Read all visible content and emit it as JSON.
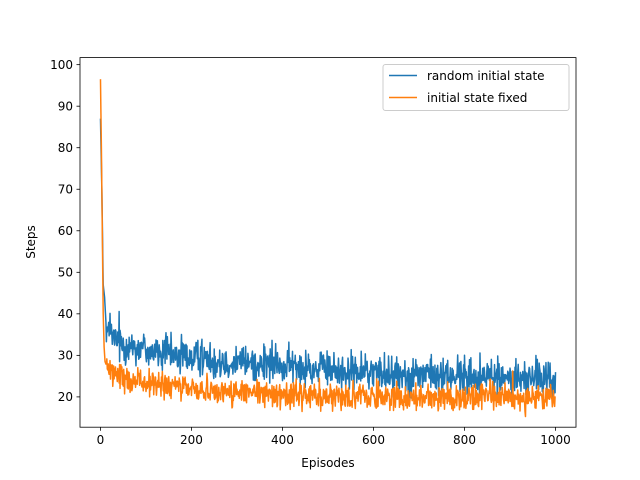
{
  "chart_data": {
    "type": "line",
    "title": "",
    "xlabel": "Episodes",
    "ylabel": "Steps",
    "xlim": [
      -45,
      1045
    ],
    "ylim": [
      12.7,
      101.7
    ],
    "x_ticks": [
      0,
      200,
      400,
      600,
      800,
      1000
    ],
    "y_ticks": [
      20,
      30,
      40,
      50,
      60,
      70,
      80,
      90,
      100
    ],
    "grid": false,
    "legend_position": "top-right",
    "series": [
      {
        "name": "random initial state",
        "color": "#1f77b4",
        "points": [
          [
            0,
            87
          ],
          [
            3,
            70
          ],
          [
            6,
            47
          ],
          [
            9,
            44
          ],
          [
            12,
            38
          ],
          [
            15,
            36
          ],
          [
            20,
            35
          ],
          [
            30,
            34
          ],
          [
            40,
            33
          ],
          [
            60,
            32.5
          ],
          [
            80,
            32
          ],
          [
            100,
            31.5
          ],
          [
            130,
            30.5
          ],
          [
            160,
            30
          ],
          [
            200,
            29.5
          ],
          [
            250,
            29
          ],
          [
            300,
            28.5
          ],
          [
            350,
            28
          ],
          [
            400,
            27.5
          ],
          [
            450,
            27
          ],
          [
            500,
            26.5
          ],
          [
            550,
            26
          ],
          [
            600,
            26
          ],
          [
            650,
            25.5
          ],
          [
            700,
            25.5
          ],
          [
            750,
            25
          ],
          [
            800,
            25
          ],
          [
            850,
            24.8
          ],
          [
            900,
            24.6
          ],
          [
            950,
            24.5
          ],
          [
            1000,
            24.3
          ]
        ],
        "noise": 2.2
      },
      {
        "name": "initial state fixed",
        "color": "#ff7f0e",
        "points": [
          [
            0,
            96.5
          ],
          [
            2,
            80
          ],
          [
            4,
            60
          ],
          [
            6,
            40
          ],
          [
            8,
            32
          ],
          [
            10,
            28.5
          ],
          [
            15,
            27
          ],
          [
            20,
            26
          ],
          [
            40,
            25
          ],
          [
            60,
            24.3
          ],
          [
            80,
            23.7
          ],
          [
            100,
            23.2
          ],
          [
            150,
            22.5
          ],
          [
            200,
            22
          ],
          [
            250,
            21.5
          ],
          [
            300,
            21
          ],
          [
            400,
            20.5
          ],
          [
            500,
            20.3
          ],
          [
            600,
            20.2
          ],
          [
            700,
            20
          ],
          [
            800,
            20
          ],
          [
            900,
            19.9
          ],
          [
            1000,
            19.8
          ]
        ],
        "noise": 1.6
      }
    ]
  }
}
